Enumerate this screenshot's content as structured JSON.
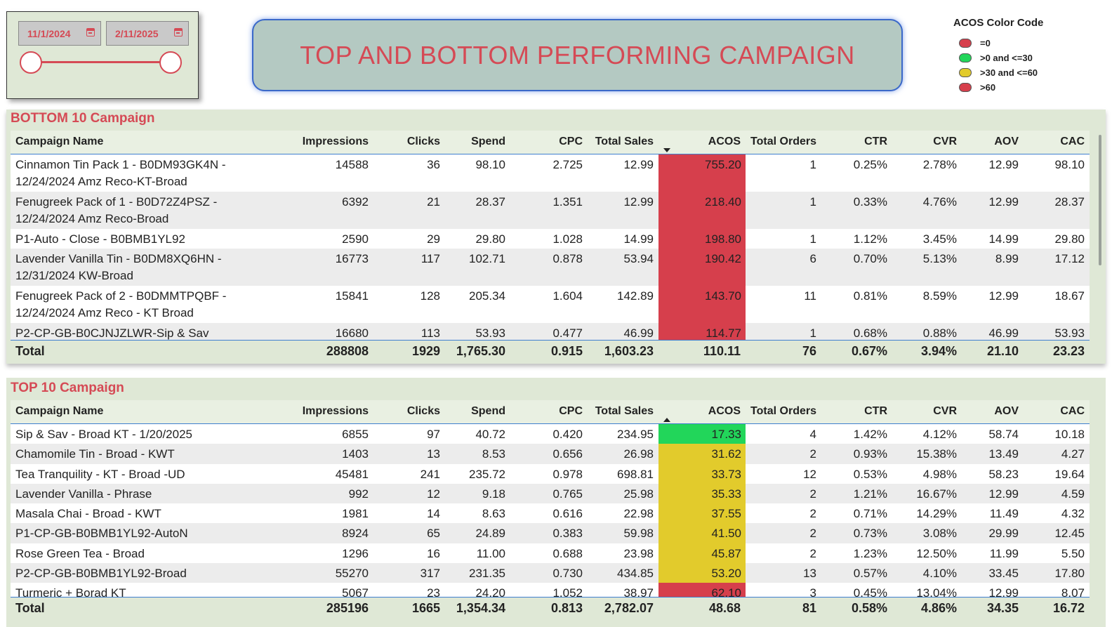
{
  "slicer": {
    "start_date": "11/1/2024",
    "end_date": "2/11/2025"
  },
  "banner": {
    "title": "TOP AND BOTTOM PERFORMING CAMPAIGN"
  },
  "legend": {
    "title": "ACOS Color Code",
    "items": [
      {
        "label": "=0",
        "color": "#d63f4c"
      },
      {
        "label": ">0 and <=30",
        "color": "#22d65a"
      },
      {
        "label": ">30 and <=60",
        "color": "#e2cb2c"
      },
      {
        "label": ">60",
        "color": "#d63f4c"
      }
    ]
  },
  "colors": {
    "red": "#d63f4c",
    "green": "#22d65a",
    "yellow": "#e2cb2c"
  },
  "columns": [
    "Campaign Name",
    "Impressions",
    "Clicks",
    "Spend",
    "CPC",
    "Total Sales",
    "ACOS",
    "Total Orders",
    "CTR",
    "CVR",
    "AOV",
    "CAC"
  ],
  "bottom": {
    "title": "BOTTOM 10 Campaign",
    "rows": [
      {
        "name": "Cinnamon Tin Pack 1 - B0DM93GK4N - 12/24/2024 Amz Reco-KT-Broad",
        "impressions": "14588",
        "clicks": "36",
        "spend": "98.10",
        "cpc": "2.725",
        "sales": "12.99",
        "acos": "755.20",
        "acos_color": "red",
        "orders": "1",
        "ctr": "0.25%",
        "cvr": "2.78%",
        "aov": "12.99",
        "cac": "98.10"
      },
      {
        "name": "Fenugreek Pack of 1 - B0D72Z4PSZ - 12/24/2024 Amz Reco-Broad",
        "impressions": "6392",
        "clicks": "21",
        "spend": "28.37",
        "cpc": "1.351",
        "sales": "12.99",
        "acos": "218.40",
        "acos_color": "red",
        "orders": "1",
        "ctr": "0.33%",
        "cvr": "4.76%",
        "aov": "12.99",
        "cac": "28.37"
      },
      {
        "name": "P1-Auto - Close - B0BMB1YL92",
        "impressions": "2590",
        "clicks": "29",
        "spend": "29.80",
        "cpc": "1.028",
        "sales": "14.99",
        "acos": "198.80",
        "acos_color": "red",
        "orders": "1",
        "ctr": "1.12%",
        "cvr": "3.45%",
        "aov": "14.99",
        "cac": "29.80"
      },
      {
        "name": "Lavender Vanilla Tin - B0DM8XQ6HN - 12/31/2024 KW-Broad",
        "impressions": "16773",
        "clicks": "117",
        "spend": "102.71",
        "cpc": "0.878",
        "sales": "53.94",
        "acos": "190.42",
        "acos_color": "red",
        "orders": "6",
        "ctr": "0.70%",
        "cvr": "5.13%",
        "aov": "8.99",
        "cac": "17.12"
      },
      {
        "name": "Fenugreek Pack of 2 - B0DMMTPQBF - 12/24/2024 Amz Reco - KT Broad",
        "impressions": "15841",
        "clicks": "128",
        "spend": "205.34",
        "cpc": "1.604",
        "sales": "142.89",
        "acos": "143.70",
        "acos_color": "red",
        "orders": "11",
        "ctr": "0.81%",
        "cvr": "8.59%",
        "aov": "12.99",
        "cac": "18.67"
      },
      {
        "name": "P2-CP-GB-B0CJNJZLWR-Sip & Sav",
        "impressions": "16680",
        "clicks": "113",
        "spend": "53.93",
        "cpc": "0.477",
        "sales": "46.99",
        "acos": "114.77",
        "acos_color": "red",
        "orders": "1",
        "ctr": "0.68%",
        "cvr": "0.88%",
        "aov": "46.99",
        "cac": "53.93"
      }
    ],
    "total": {
      "label": "Total",
      "impressions": "288808",
      "clicks": "1929",
      "spend": "1,765.30",
      "cpc": "0.915",
      "sales": "1,603.23",
      "acos": "110.11",
      "orders": "76",
      "ctr": "0.67%",
      "cvr": "3.94%",
      "aov": "21.10",
      "cac": "23.23"
    }
  },
  "top": {
    "title": "TOP 10 Campaign",
    "rows": [
      {
        "name": "Sip & Sav - Broad KT - 1/20/2025",
        "impressions": "6855",
        "clicks": "97",
        "spend": "40.72",
        "cpc": "0.420",
        "sales": "234.95",
        "acos": "17.33",
        "acos_color": "green",
        "orders": "4",
        "ctr": "1.42%",
        "cvr": "4.12%",
        "aov": "58.74",
        "cac": "10.18"
      },
      {
        "name": "Chamomile Tin - Broad - KWT",
        "impressions": "1403",
        "clicks": "13",
        "spend": "8.53",
        "cpc": "0.656",
        "sales": "26.98",
        "acos": "31.62",
        "acos_color": "yellow",
        "orders": "2",
        "ctr": "0.93%",
        "cvr": "15.38%",
        "aov": "13.49",
        "cac": "4.27"
      },
      {
        "name": "Tea Tranquility - KT - Broad -UD",
        "impressions": "45481",
        "clicks": "241",
        "spend": "235.72",
        "cpc": "0.978",
        "sales": "698.81",
        "acos": "33.73",
        "acos_color": "yellow",
        "orders": "12",
        "ctr": "0.53%",
        "cvr": "4.98%",
        "aov": "58.23",
        "cac": "19.64"
      },
      {
        "name": "Lavender Vanilla - Phrase",
        "impressions": "992",
        "clicks": "12",
        "spend": "9.18",
        "cpc": "0.765",
        "sales": "25.98",
        "acos": "35.33",
        "acos_color": "yellow",
        "orders": "2",
        "ctr": "1.21%",
        "cvr": "16.67%",
        "aov": "12.99",
        "cac": "4.59"
      },
      {
        "name": "Masala Chai - Broad - KWT",
        "impressions": "1981",
        "clicks": "14",
        "spend": "8.63",
        "cpc": "0.616",
        "sales": "22.98",
        "acos": "37.55",
        "acos_color": "yellow",
        "orders": "2",
        "ctr": "0.71%",
        "cvr": "14.29%",
        "aov": "11.49",
        "cac": "4.32"
      },
      {
        "name": "P1-CP-GB-B0BMB1YL92-AutoN",
        "impressions": "8924",
        "clicks": "65",
        "spend": "24.89",
        "cpc": "0.383",
        "sales": "59.98",
        "acos": "41.50",
        "acos_color": "yellow",
        "orders": "2",
        "ctr": "0.73%",
        "cvr": "3.08%",
        "aov": "29.99",
        "cac": "12.45"
      },
      {
        "name": "Rose Green Tea - Broad",
        "impressions": "1296",
        "clicks": "16",
        "spend": "11.00",
        "cpc": "0.688",
        "sales": "23.98",
        "acos": "45.87",
        "acos_color": "yellow",
        "orders": "2",
        "ctr": "1.23%",
        "cvr": "12.50%",
        "aov": "11.99",
        "cac": "5.50"
      },
      {
        "name": "P2-CP-GB-B0BMB1YL92-Broad",
        "impressions": "55270",
        "clicks": "317",
        "spend": "231.35",
        "cpc": "0.730",
        "sales": "434.85",
        "acos": "53.20",
        "acos_color": "yellow",
        "orders": "13",
        "ctr": "0.57%",
        "cvr": "4.10%",
        "aov": "33.45",
        "cac": "17.80"
      },
      {
        "name": "Turmeric + Borad KT",
        "impressions": "5067",
        "clicks": "23",
        "spend": "24.20",
        "cpc": "1.052",
        "sales": "38.97",
        "acos": "62.10",
        "acos_color": "red",
        "orders": "3",
        "ctr": "0.45%",
        "cvr": "13.04%",
        "aov": "12.99",
        "cac": "8.07"
      }
    ],
    "total": {
      "label": "Total",
      "impressions": "285196",
      "clicks": "1665",
      "spend": "1,354.34",
      "cpc": "0.813",
      "sales": "2,782.07",
      "acos": "48.68",
      "orders": "81",
      "ctr": "0.58%",
      "cvr": "4.86%",
      "aov": "34.35",
      "cac": "16.72"
    }
  }
}
